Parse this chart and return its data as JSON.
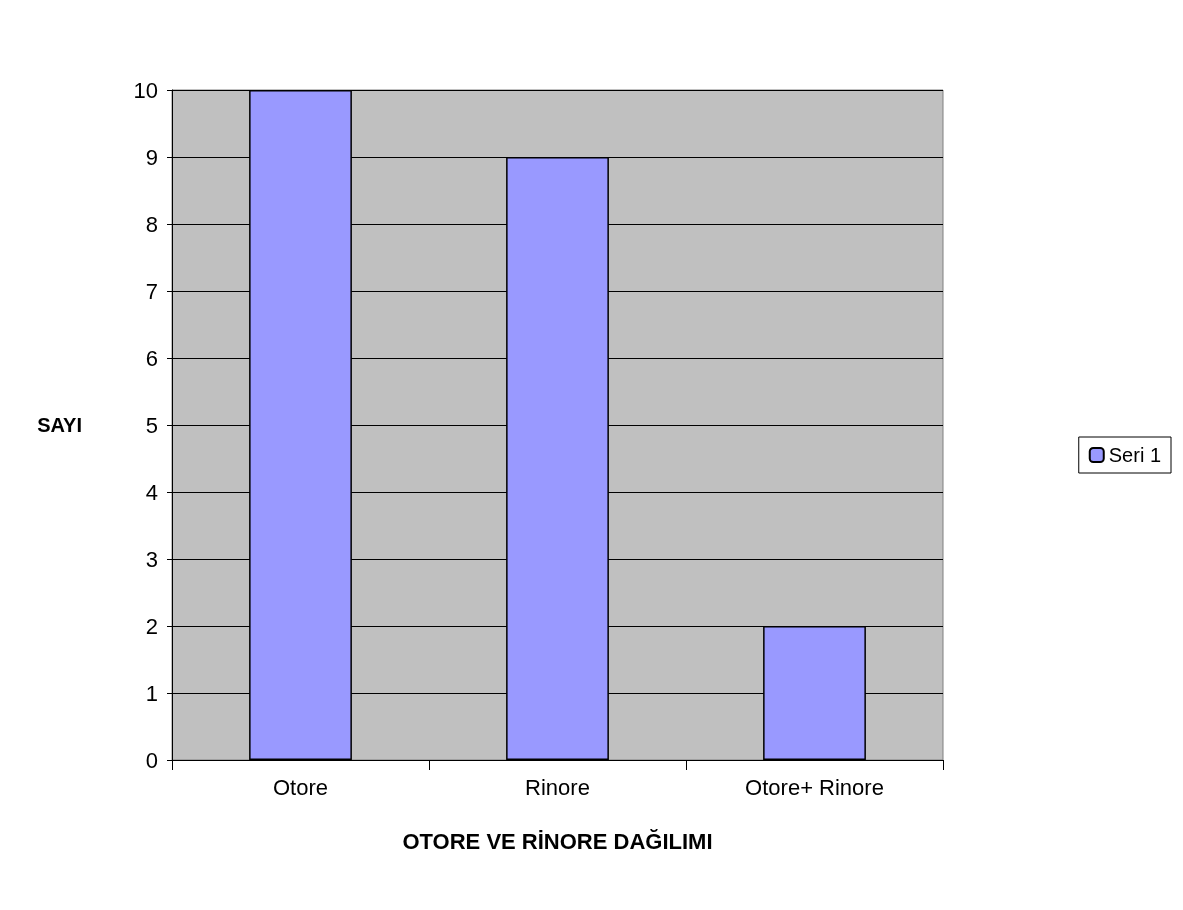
{
  "chart_data": {
    "type": "bar",
    "xlabel": "OTORE VE RİNORE DAĞILIMI",
    "ylabel": "SAYI",
    "categories": [
      "Otore",
      "Rinore",
      "Otore+ Rinore"
    ],
    "series": [
      {
        "name": "Seri 1",
        "color": "#9999ff",
        "values": [
          10,
          9,
          2
        ]
      }
    ],
    "ylim": [
      0,
      10
    ],
    "yticks": [
      0,
      1,
      2,
      3,
      4,
      5,
      6,
      7,
      8,
      9,
      10
    ],
    "grid": "y",
    "legend": "right"
  }
}
